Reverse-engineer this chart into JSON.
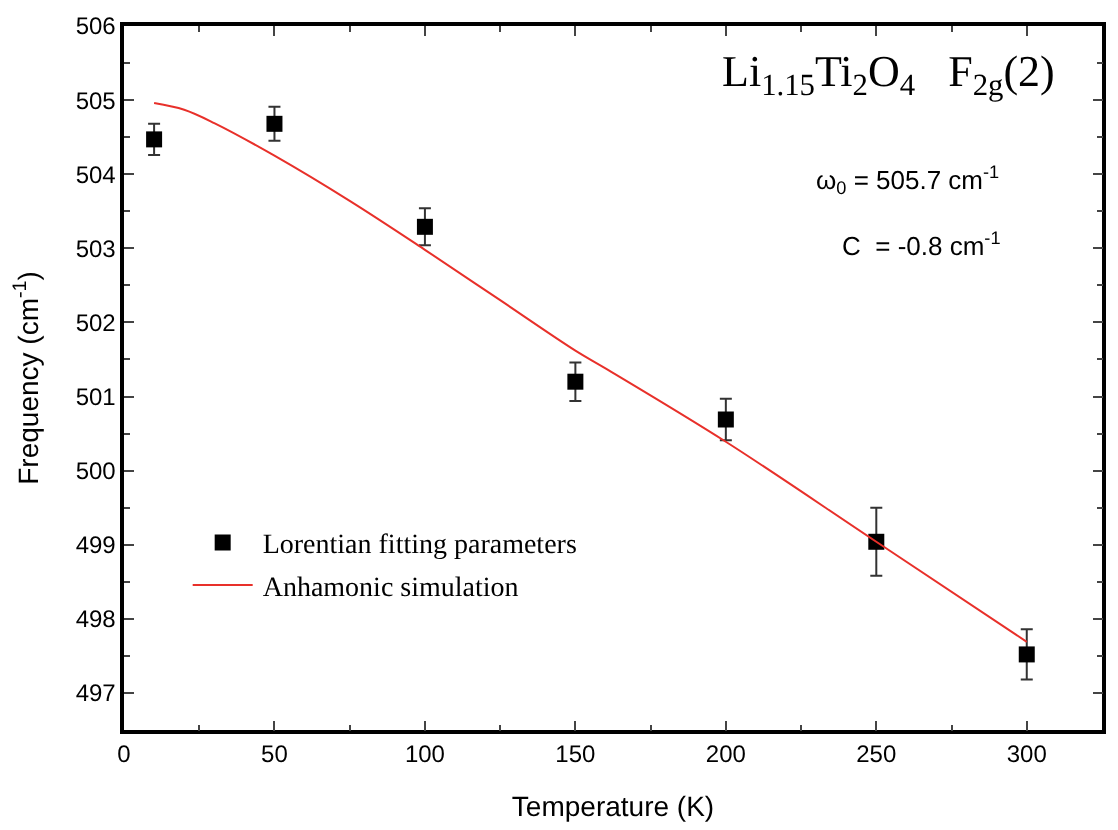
{
  "chart_data": {
    "type": "scatter",
    "xlabel": "Temperature (K)",
    "ylabel": "Frequency (cm$^{-1}$)",
    "annotations": [
      "Li$_{1.15}$Ti$_{2}$O$_{4}$   F$_{2g}$(2)",
      "ω$_{0}$ = 505.7 cm$^{-1}$",
      "C  = -0.8 cm$^{-1}$"
    ],
    "series": [
      {
        "name": "Lorentian fitting parameters",
        "color": "#000000",
        "marker": "square",
        "x": [
          10,
          50,
          100,
          150,
          200,
          250,
          300
        ],
        "values": [
          504.47,
          504.68,
          503.29,
          501.2,
          500.69,
          499.04,
          497.52
        ],
        "errors": [
          0.21,
          0.23,
          0.25,
          0.26,
          0.28,
          0.46,
          0.34
        ]
      },
      {
        "name": "Anhamonic simulation",
        "type": "line",
        "color": "#e8302a",
        "marker": "none",
        "line_style": "solid",
        "x": [
          10,
          20,
          30,
          50,
          75,
          100,
          125,
          150,
          160,
          200,
          250,
          300
        ],
        "values": [
          504.96,
          504.87,
          504.69,
          504.25,
          503.64,
          502.98,
          502.3,
          501.62,
          501.38,
          500.39,
          499.04,
          497.69
        ]
      }
    ],
    "xlim": [
      0,
      325
    ],
    "xticks": [
      0,
      50,
      100,
      150,
      200,
      250,
      300
    ],
    "ylim": [
      496.5,
      506
    ],
    "yticks": [
      497,
      498,
      499,
      500,
      501,
      502,
      503,
      504,
      505,
      506
    ],
    "legend": "bottom left"
  }
}
